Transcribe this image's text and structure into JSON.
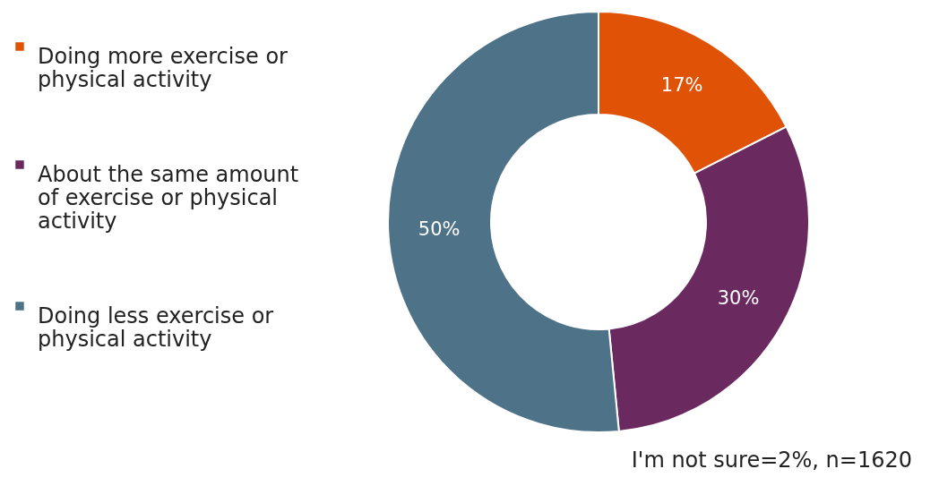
{
  "chart_data": {
    "type": "donut",
    "categories": [
      "Doing more exercise or physical activity",
      "About the same amount of exercise or physical activity",
      "Doing less exercise or physical activity"
    ],
    "values": [
      17,
      30,
      50
    ],
    "value_labels": [
      "17%",
      "30%",
      "50%"
    ],
    "colors": [
      "#e05206",
      "#6b2a5f",
      "#4e7388"
    ],
    "legend": "left",
    "annotations": [
      "I'm not sure=2%, n=1620"
    ]
  }
}
